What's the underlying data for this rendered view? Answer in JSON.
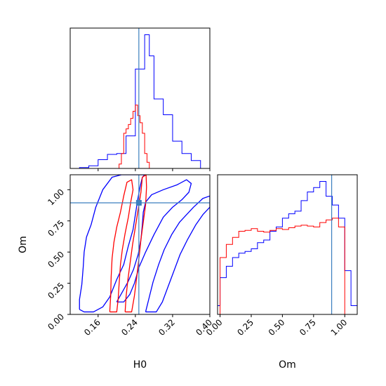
{
  "chart_data": {
    "type": "corner",
    "parameters": [
      "H0",
      "Om"
    ],
    "truth": {
      "H0": 0.2475,
      "Om": 0.895
    },
    "colors": {
      "blue": "#0000ff",
      "red": "#ff0000",
      "truth": "#3b7fbf"
    },
    "panels": [
      {
        "type": "histogram",
        "parameter": "H0",
        "xlim": [
          0.1,
          0.4
        ],
        "x_ticks": [
          0.16,
          0.24,
          0.32,
          0.4
        ],
        "series": [
          {
            "color": "blue",
            "bin_edges": [
              0.1,
              0.12,
              0.14,
              0.16,
              0.18,
              0.2,
              0.22,
              0.24,
              0.26,
              0.27,
              0.28,
              0.3,
              0.32,
              0.34,
              0.36,
              0.38,
              0.4
            ],
            "heights": [
              0,
              1,
              3,
              10,
              16,
              17,
              37,
              113,
              152,
              128,
              79,
              61,
              31,
              17,
              9,
              0
            ]
          },
          {
            "color": "red",
            "bin_edges": [
              0.2,
              0.205,
              0.21,
              0.215,
              0.22,
              0.225,
              0.23,
              0.235,
              0.24,
              0.245,
              0.25,
              0.255,
              0.26,
              0.265,
              0.27,
              0.275
            ],
            "heights": [
              0,
              5,
              17,
              40,
              45,
              50,
              57,
              65,
              72,
              60,
              52,
              40,
              17,
              7,
              0
            ]
          }
        ]
      },
      {
        "type": "contour",
        "x_parameter": "H0",
        "y_parameter": "Om",
        "xlim": [
          0.1,
          0.4
        ],
        "ylim": [
          0.0,
          1.12
        ],
        "x_ticks": [
          0.16,
          0.24,
          0.32,
          0.4
        ],
        "y_ticks": [
          0.0,
          0.25,
          0.5,
          0.75,
          1.0
        ],
        "x_tick_labels": [
          "0.16",
          "0.24",
          "0.32",
          "0.40"
        ],
        "y_tick_labels": [
          "0.00",
          "0.25",
          "0.50",
          "0.75",
          "1.00"
        ],
        "xlabel": "H0",
        "ylabel": "Om",
        "contours": [
          {
            "color": "blue",
            "points": [
              [
                0.12,
                0.04
              ],
              [
                0.13,
                0.02
              ],
              [
                0.15,
                0.02
              ],
              [
                0.17,
                0.06
              ],
              [
                0.185,
                0.14
              ],
              [
                0.2,
                0.28
              ],
              [
                0.215,
                0.4
              ],
              [
                0.225,
                0.55
              ],
              [
                0.235,
                0.68
              ],
              [
                0.24,
                0.8
              ],
              [
                0.245,
                0.92
              ],
              [
                0.25,
                1.02
              ],
              [
                0.255,
                1.1
              ],
              [
                0.26,
                1.12
              ],
              [
                0.21,
                1.12
              ],
              [
                0.19,
                1.1
              ],
              [
                0.17,
                1.0
              ],
              [
                0.155,
                0.86
              ],
              [
                0.145,
                0.72
              ],
              [
                0.135,
                0.62
              ],
              [
                0.13,
                0.5
              ],
              [
                0.128,
                0.38
              ],
              [
                0.125,
                0.24
              ],
              [
                0.12,
                0.12
              ],
              [
                0.12,
                0.04
              ]
            ]
          },
          {
            "color": "blue",
            "points": [
              [
                0.2,
                0.1
              ],
              [
                0.215,
                0.1
              ],
              [
                0.228,
                0.16
              ],
              [
                0.238,
                0.25
              ],
              [
                0.248,
                0.38
              ],
              [
                0.262,
                0.5
              ],
              [
                0.28,
                0.64
              ],
              [
                0.3,
                0.78
              ],
              [
                0.32,
                0.86
              ],
              [
                0.34,
                0.92
              ],
              [
                0.355,
                0.98
              ],
              [
                0.36,
                1.05
              ],
              [
                0.35,
                1.08
              ],
              [
                0.33,
                1.04
              ],
              [
                0.3,
                1.0
              ],
              [
                0.275,
                0.96
              ],
              [
                0.262,
                0.9
              ],
              [
                0.257,
                0.82
              ],
              [
                0.255,
                0.72
              ],
              [
                0.252,
                0.6
              ],
              [
                0.246,
                0.48
              ],
              [
                0.236,
                0.36
              ],
              [
                0.224,
                0.26
              ],
              [
                0.212,
                0.18
              ],
              [
                0.2,
                0.1
              ]
            ]
          },
          {
            "color": "blue",
            "points": [
              [
                0.262,
                0.02
              ],
              [
                0.285,
                0.02
              ],
              [
                0.298,
                0.1
              ],
              [
                0.31,
                0.22
              ],
              [
                0.322,
                0.34
              ],
              [
                0.336,
                0.48
              ],
              [
                0.352,
                0.6
              ],
              [
                0.37,
                0.72
              ],
              [
                0.385,
                0.8
              ],
              [
                0.4,
                0.86
              ],
              [
                0.4,
                0.95
              ],
              [
                0.385,
                0.93
              ],
              [
                0.365,
                0.86
              ],
              [
                0.35,
                0.8
              ],
              [
                0.335,
                0.74
              ],
              [
                0.318,
                0.64
              ],
              [
                0.302,
                0.52
              ],
              [
                0.29,
                0.4
              ],
              [
                0.278,
                0.26
              ],
              [
                0.27,
                0.14
              ],
              [
                0.262,
                0.02
              ]
            ]
          },
          {
            "color": "red",
            "points": [
              [
                0.185,
                0.02
              ],
              [
                0.2,
                0.02
              ],
              [
                0.203,
                0.12
              ],
              [
                0.205,
                0.24
              ],
              [
                0.208,
                0.4
              ],
              [
                0.212,
                0.52
              ],
              [
                0.218,
                0.65
              ],
              [
                0.225,
                0.78
              ],
              [
                0.23,
                0.9
              ],
              [
                0.235,
                1.0
              ],
              [
                0.232,
                1.08
              ],
              [
                0.222,
                1.06
              ],
              [
                0.215,
                0.95
              ],
              [
                0.208,
                0.82
              ],
              [
                0.2,
                0.7
              ],
              [
                0.194,
                0.58
              ],
              [
                0.19,
                0.45
              ],
              [
                0.188,
                0.3
              ],
              [
                0.187,
                0.15
              ],
              [
                0.185,
                0.02
              ]
            ]
          },
          {
            "color": "red",
            "points": [
              [
                0.218,
                0.02
              ],
              [
                0.232,
                0.02
              ],
              [
                0.238,
                0.15
              ],
              [
                0.243,
                0.3
              ],
              [
                0.248,
                0.46
              ],
              [
                0.252,
                0.6
              ],
              [
                0.257,
                0.74
              ],
              [
                0.262,
                0.88
              ],
              [
                0.264,
                1.02
              ],
              [
                0.263,
                1.12
              ],
              [
                0.255,
                1.1
              ],
              [
                0.252,
                0.98
              ],
              [
                0.246,
                0.84
              ],
              [
                0.24,
                0.7
              ],
              [
                0.234,
                0.56
              ],
              [
                0.229,
                0.42
              ],
              [
                0.224,
                0.28
              ],
              [
                0.22,
                0.14
              ],
              [
                0.218,
                0.02
              ]
            ]
          }
        ]
      },
      {
        "type": "histogram",
        "parameter": "Om",
        "xlim": [
          -0.02,
          1.1
        ],
        "x_ticks": [
          0.0,
          0.25,
          0.5,
          0.75,
          1.0
        ],
        "x_tick_labels": [
          "0.00",
          "0.25",
          "0.50",
          "0.75",
          "1.00"
        ],
        "xlabel": "Om",
        "series": [
          {
            "color": "blue",
            "bin_edges": [
              -0.02,
              0.0,
              0.05,
              0.1,
              0.15,
              0.2,
              0.25,
              0.3,
              0.35,
              0.4,
              0.45,
              0.5,
              0.55,
              0.6,
              0.65,
              0.7,
              0.75,
              0.8,
              0.85,
              0.9,
              0.95,
              1.0,
              1.05,
              1.1
            ],
            "heights": [
              10,
              42,
              55,
              65,
              70,
              72,
              75,
              82,
              85,
              95,
              100,
              110,
              115,
              118,
              130,
              140,
              145,
              152,
              135,
              125,
              110,
              50,
              10
            ]
          },
          {
            "color": "red",
            "bin_edges": [
              0.0,
              0.05,
              0.1,
              0.15,
              0.2,
              0.25,
              0.3,
              0.35,
              0.4,
              0.45,
              0.5,
              0.55,
              0.6,
              0.65,
              0.7,
              0.75,
              0.8,
              0.85,
              0.9,
              0.95,
              1.0
            ],
            "heights": [
              65,
              80,
              88,
              95,
              96,
              98,
              95,
              94,
              96,
              98,
              97,
              99,
              101,
              102,
              101,
              100,
              105,
              108,
              110,
              100
            ]
          }
        ]
      }
    ]
  }
}
